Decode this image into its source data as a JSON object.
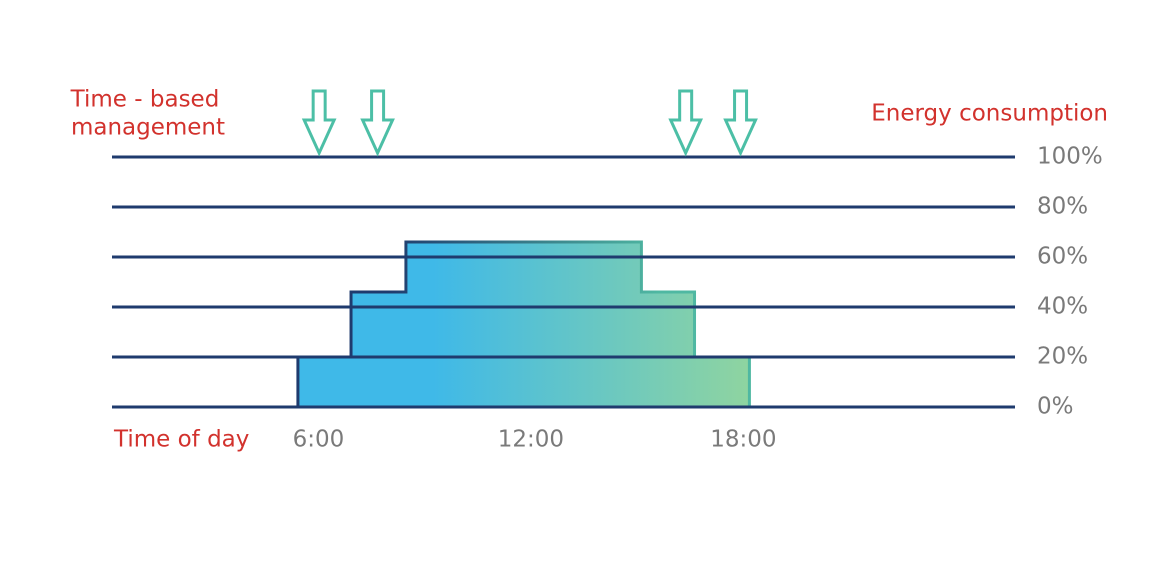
{
  "chart_data": {
    "type": "step-area",
    "title_lines": [
      "Time - based",
      "management"
    ],
    "y_label": "Energy consumption",
    "x_label": "Time of day",
    "x": [
      5.25,
      6.75,
      8.3,
      14.95,
      16.45,
      18
    ],
    "values": [
      20,
      46,
      66,
      46,
      20,
      0
    ],
    "arrows": [
      5.85,
      7.5,
      16.2,
      17.75
    ],
    "xlim": [
      0,
      25.5
    ],
    "ylim": [
      0,
      100
    ],
    "xticks": [
      {
        "value": 6,
        "label": "6:00"
      },
      {
        "value": 12,
        "label": "12:00"
      },
      {
        "value": 18,
        "label": "18:00"
      }
    ],
    "yticks": [
      {
        "value": 0,
        "label": "0%"
      },
      {
        "value": 20,
        "label": "20%"
      },
      {
        "value": 40,
        "label": "40%"
      },
      {
        "value": 60,
        "label": "60%"
      },
      {
        "value": 80,
        "label": "80%"
      },
      {
        "value": 100,
        "label": "100%"
      }
    ],
    "fill_colors": [
      "#3fb9e8",
      "#8fd4a0"
    ],
    "edge_colors": [
      "#1f3b6e",
      "#4fb8a2"
    ],
    "grid_color": "#1f3b6e",
    "arrow_color": "#4cbfa6",
    "grid": true
  }
}
